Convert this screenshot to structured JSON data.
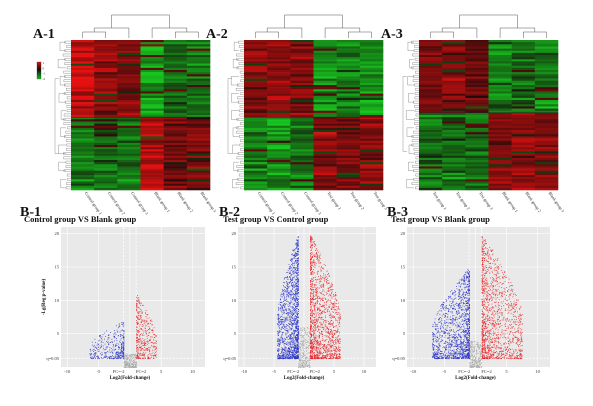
{
  "figure": {
    "heatmap_panels": [
      {
        "label": "A-1",
        "columns": [
          "Control group 1",
          "Control group 2",
          "Control group 3",
          "Blank group 1",
          "Blank group 2",
          "Blank group 3"
        ]
      },
      {
        "label": "A-2",
        "columns": [
          "Control group 1",
          "Control group 2",
          "Control group 3",
          "Test group 1",
          "Test group 2",
          "Test group 3"
        ]
      },
      {
        "label": "A-3",
        "columns": [
          "Test group 1",
          "Test group 2",
          "Test group 3",
          "Blank group 1",
          "Blank group 2",
          "Blank group 3"
        ]
      }
    ],
    "volcano_panels": [
      {
        "label": "B-1",
        "title": "Control group VS Blank group"
      },
      {
        "label": "B-2",
        "title": "Test group VS Control group"
      },
      {
        "label": "B-3",
        "title": "Test group VS Blank group"
      }
    ],
    "legend": {
      "ticks": [
        "1",
        "0",
        "-1",
        "-2"
      ]
    },
    "colors": {
      "up": "#e8262a",
      "down": "#2b35c8",
      "ns": "#a8a8a8",
      "plot_bg": "#e9e9e9",
      "heat_red": "#e01010",
      "heat_green": "#12c21a"
    }
  },
  "chart_data": [
    {
      "type": "heatmap",
      "label": "A-1",
      "columns": [
        "Control group 1",
        "Control group 2",
        "Control group 3",
        "Blank group 1",
        "Blank group 2",
        "Blank group 3"
      ],
      "clusters": [
        {
          "name": "upper",
          "pattern": [
            1,
            0.7,
            0.6,
            -1,
            -0.6,
            -0.7
          ]
        },
        {
          "name": "lower",
          "pattern": [
            -0.7,
            -0.6,
            -0.6,
            0.9,
            0.5,
            0.6
          ]
        }
      ]
    },
    {
      "type": "heatmap",
      "label": "A-2",
      "columns": [
        "Control group 1",
        "Control group 2",
        "Control group 3",
        "Test group 1",
        "Test group 2",
        "Test group 3"
      ],
      "clusters": [
        {
          "name": "upper",
          "pattern": [
            0.6,
            0.7,
            0.6,
            -0.8,
            -0.7,
            -0.8
          ]
        },
        {
          "name": "lower",
          "pattern": [
            -0.7,
            -0.8,
            -0.6,
            0.7,
            0.6,
            0.6
          ]
        }
      ]
    },
    {
      "type": "heatmap",
      "label": "A-3",
      "columns": [
        "Test group 1",
        "Test group 2",
        "Test group 3",
        "Blank group 1",
        "Blank group 2",
        "Blank group 3"
      ],
      "clusters": [
        {
          "name": "upper",
          "pattern": [
            0.6,
            0.6,
            0.5,
            -0.7,
            -0.6,
            -0.7
          ]
        },
        {
          "name": "lower",
          "pattern": [
            -0.6,
            -0.6,
            -0.6,
            0.6,
            0.7,
            0.6
          ]
        }
      ]
    },
    {
      "type": "scatter",
      "label": "B-1",
      "title": "Control group VS Blank group",
      "xlabel": "Log2(Fold-change)",
      "ylabel": "-Lg(Reg p-value)",
      "xlim": [
        -11,
        12
      ],
      "ylim": [
        0,
        21
      ],
      "xticks": [
        "-10",
        "-5",
        "FC=-2",
        "FC=2",
        "5",
        "10"
      ],
      "yticks": [
        "20",
        "15",
        "10",
        "5",
        "q=0.05"
      ],
      "series": [
        {
          "group": "down",
          "approx_points": 380,
          "x_range": [
            -6.5,
            -1
          ],
          "y_range": [
            1.3,
            7
          ]
        },
        {
          "group": "up",
          "approx_points": 420,
          "x_range": [
            1,
            4.2
          ],
          "y_range": [
            1.3,
            11
          ]
        },
        {
          "group": "ns",
          "approx_points": 250,
          "x_range": [
            -1,
            1
          ],
          "y_range": [
            0,
            2
          ]
        }
      ]
    },
    {
      "type": "scatter",
      "label": "B-2",
      "title": "Test group VS Control group",
      "xlabel": "Log2(Fold-change)",
      "xlim": [
        -11,
        12
      ],
      "ylim": [
        0,
        21
      ],
      "xticks": [
        "-10",
        "-5",
        "FC=-2",
        "FC=2",
        "5",
        "10"
      ],
      "yticks": [
        "20",
        "15",
        "10",
        "5",
        "q=0.05"
      ],
      "series": [
        {
          "group": "down",
          "approx_points": 1500,
          "x_range": [
            -4.5,
            -1
          ],
          "y_range": [
            1.3,
            20
          ]
        },
        {
          "group": "up",
          "approx_points": 1500,
          "x_range": [
            1,
            6
          ],
          "y_range": [
            1.3,
            20
          ]
        },
        {
          "group": "ns",
          "approx_points": 300,
          "x_range": [
            -1,
            1
          ],
          "y_range": [
            0,
            6
          ]
        }
      ]
    },
    {
      "type": "scatter",
      "label": "B-3",
      "title": "Test group VS Blank group",
      "xlabel": "Log2(Fold-change)",
      "xlim": [
        -11,
        12
      ],
      "ylim": [
        0,
        21
      ],
      "xticks": [
        "-10",
        "-5",
        "FC=-2",
        "FC=2",
        "5",
        "10"
      ],
      "yticks": [
        "20",
        "15",
        "10",
        "5",
        "q=0.05"
      ],
      "series": [
        {
          "group": "down",
          "approx_points": 1400,
          "x_range": [
            -7,
            -1
          ],
          "y_range": [
            1.3,
            15
          ]
        },
        {
          "group": "up",
          "approx_points": 1400,
          "x_range": [
            1,
            7.5
          ],
          "y_range": [
            1.3,
            20
          ]
        },
        {
          "group": "ns",
          "approx_points": 280,
          "x_range": [
            -1,
            1
          ],
          "y_range": [
            0,
            4
          ]
        }
      ]
    }
  ]
}
